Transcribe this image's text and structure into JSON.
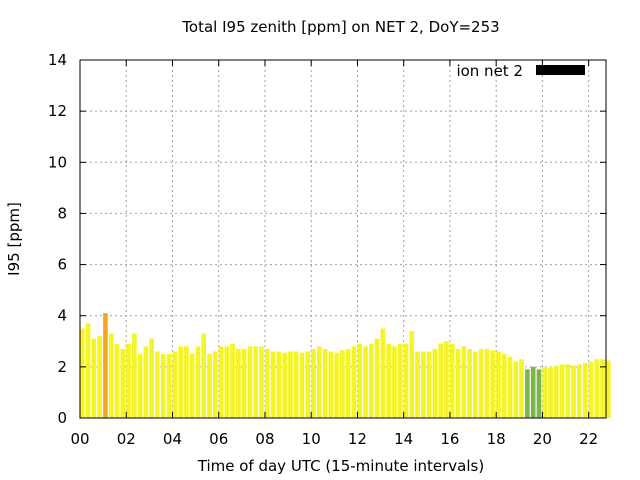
{
  "chart_data": {
    "type": "bar",
    "title": "Total I95 zenith [ppm] on NET 2, DoY=253",
    "xlabel": "Time of day UTC (15-minute intervals)",
    "ylabel": "I95 [ppm]",
    "xlim": [
      0,
      22.75
    ],
    "ylim": [
      0,
      14
    ],
    "x_ticks": [
      "00",
      "02",
      "04",
      "06",
      "08",
      "10",
      "12",
      "14",
      "16",
      "18",
      "20",
      "22"
    ],
    "y_ticks": [
      "0",
      "2",
      "4",
      "6",
      "8",
      "10",
      "12",
      "14"
    ],
    "grid": true,
    "legend_position": "top-right",
    "bar_interval_hours": 0.25,
    "series": [
      {
        "name": "ion net 2",
        "legend_color": "#000000",
        "values": [
          3.5,
          3.7,
          3.1,
          3.2,
          4.1,
          3.3,
          2.9,
          2.7,
          2.9,
          3.3,
          2.5,
          2.8,
          3.1,
          2.6,
          2.5,
          2.5,
          2.6,
          2.8,
          2.8,
          2.5,
          2.8,
          3.3,
          2.5,
          2.6,
          2.8,
          2.8,
          2.9,
          2.7,
          2.7,
          2.8,
          2.8,
          2.8,
          2.7,
          2.6,
          2.6,
          2.55,
          2.6,
          2.6,
          2.55,
          2.6,
          2.7,
          2.8,
          2.7,
          2.6,
          2.55,
          2.65,
          2.7,
          2.8,
          2.9,
          2.8,
          2.9,
          3.1,
          3.5,
          2.9,
          2.8,
          2.9,
          2.9,
          3.4,
          2.6,
          2.6,
          2.6,
          2.7,
          2.9,
          3.0,
          2.9,
          2.7,
          2.8,
          2.7,
          2.6,
          2.7,
          2.7,
          2.65,
          2.6,
          2.5,
          2.4,
          2.2,
          2.3,
          1.9,
          2.0,
          1.9,
          2.0,
          2.0,
          2.05,
          2.1,
          2.1,
          2.05,
          2.1,
          2.15,
          2.2,
          2.3,
          2.3,
          2.25
        ],
        "highlight_colors": {
          "4": "#f2a71b",
          "77": "#7ab648",
          "78": "#7ab648",
          "79": "#7ab648"
        }
      }
    ],
    "default_bar_color": "#f5f526"
  }
}
